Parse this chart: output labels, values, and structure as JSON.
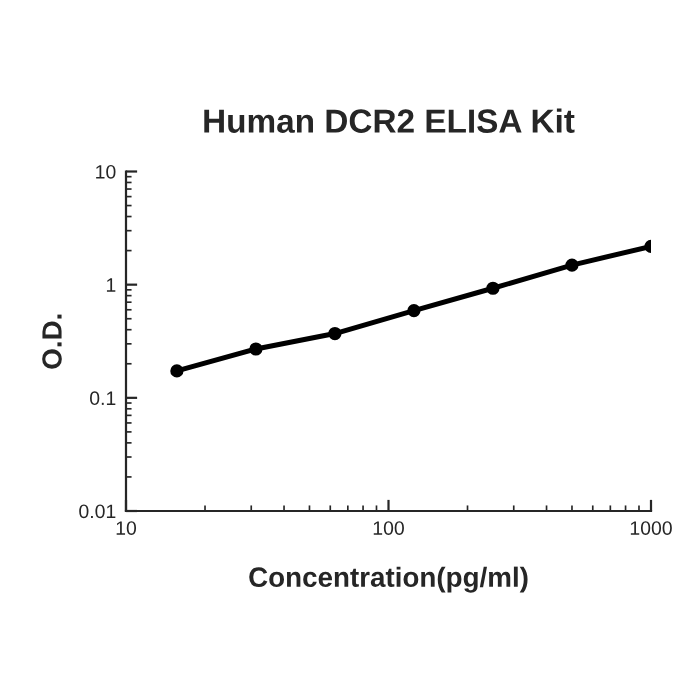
{
  "chart_data": {
    "type": "line",
    "title": "Human DCR2 ELISA Kit",
    "xlabel": "Concentration(pg/ml)",
    "ylabel": "O.D.",
    "x": [
      15.625,
      31.25,
      62.5,
      125,
      250,
      500,
      1000
    ],
    "series": [
      {
        "color": "#000000",
        "values": [
          0.173,
          0.27,
          0.37,
          0.59,
          0.93,
          1.49,
          2.18
        ]
      }
    ],
    "log": "xy",
    "xlim": [
      10,
      1000
    ],
    "ylim": [
      0.01,
      10
    ],
    "xticks": [
      10,
      100,
      1000
    ],
    "yticks": [
      0.01,
      0.1,
      1,
      10
    ],
    "marker": "circle",
    "line_style": "solid",
    "grid": false,
    "legend": false
  }
}
